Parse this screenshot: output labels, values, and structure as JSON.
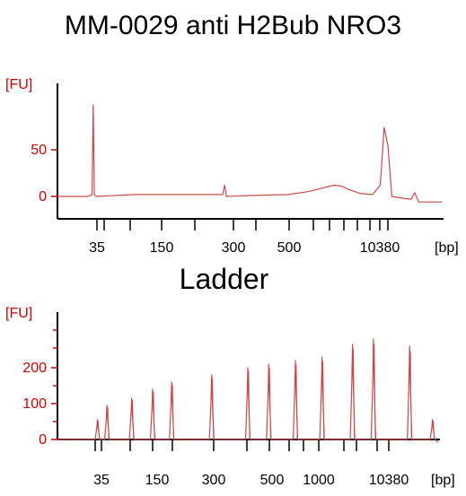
{
  "page": {
    "title": "MM-0029 anti H2Bub NRO3",
    "ladder_title": "Ladder"
  },
  "colors": {
    "trace": "#c8494a",
    "y_axis_text": "#cc0000",
    "axis": "#000000"
  },
  "chart_data": [
    {
      "type": "line",
      "title": "MM-0029 anti H2Bub NRO3",
      "ylabel": "[FU]",
      "xlabel": "[bp]",
      "yticks": [
        0,
        50
      ],
      "ylim": [
        -10,
        105
      ],
      "xticks": [
        "35",
        "150",
        "300",
        "500",
        "10380"
      ],
      "x_scale": "ladder-calibrated (non-linear)",
      "grid": false,
      "series": [
        {
          "points": [
            [
              0,
              0
            ],
            [
              0.08,
              0
            ],
            [
              0.09,
              2
            ],
            [
              0.093,
              98
            ],
            [
              0.096,
              2
            ],
            [
              0.1,
              0
            ],
            [
              0.2,
              2
            ],
            [
              0.3,
              2
            ],
            [
              0.4,
              2
            ],
            [
              0.43,
              2
            ],
            [
              0.435,
              12
            ],
            [
              0.44,
              0
            ],
            [
              0.5,
              1
            ],
            [
              0.6,
              2
            ],
            [
              0.65,
              5
            ],
            [
              0.7,
              10
            ],
            [
              0.72,
              12
            ],
            [
              0.74,
              11
            ],
            [
              0.76,
              7
            ],
            [
              0.79,
              3
            ],
            [
              0.82,
              2
            ],
            [
              0.84,
              12
            ],
            [
              0.85,
              74
            ],
            [
              0.86,
              54
            ],
            [
              0.87,
              0
            ],
            [
              0.9,
              -2
            ],
            [
              0.92,
              -3
            ],
            [
              0.93,
              4
            ],
            [
              0.94,
              -6
            ],
            [
              0.96,
              -6
            ],
            [
              1,
              -6
            ]
          ]
        }
      ]
    },
    {
      "type": "line",
      "title": "Ladder",
      "ylabel": "[FU]",
      "xlabel": "[bp]",
      "yticks": [
        0,
        100,
        200
      ],
      "ylim": [
        -10,
        330
      ],
      "xticks": [
        "35",
        "150",
        "300",
        "500",
        "1000",
        "10380"
      ],
      "x_scale": "ladder-calibrated (non-linear)",
      "grid": false,
      "series": [
        {
          "peaks": [
            {
              "x": 0.105,
              "height": 55
            },
            {
              "x": 0.13,
              "height": 95
            },
            {
              "x": 0.195,
              "height": 115
            },
            {
              "x": 0.25,
              "height": 140
            },
            {
              "x": 0.3,
              "height": 160
            },
            {
              "x": 0.405,
              "height": 180
            },
            {
              "x": 0.5,
              "height": 200
            },
            {
              "x": 0.555,
              "height": 210
            },
            {
              "x": 0.625,
              "height": 220
            },
            {
              "x": 0.695,
              "height": 230
            },
            {
              "x": 0.775,
              "height": 265
            },
            {
              "x": 0.83,
              "height": 280
            },
            {
              "x": 0.925,
              "height": 260
            },
            {
              "x": 0.985,
              "height": 55
            }
          ],
          "floor": 0,
          "tail_floor": -8
        }
      ]
    }
  ]
}
